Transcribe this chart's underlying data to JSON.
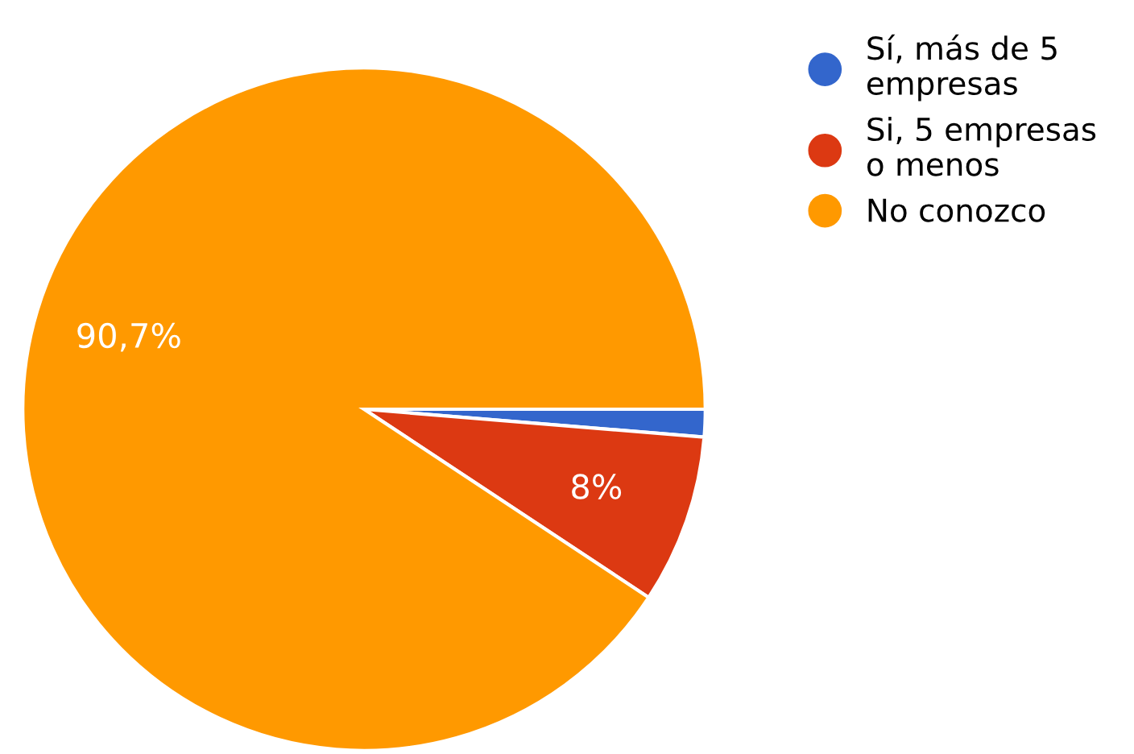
{
  "chart_data": {
    "type": "pie",
    "categories": [
      "Sí, más de 5 empresas",
      "Si, 5 empresas o menos",
      "No conozco"
    ],
    "values": [
      1.3,
      8,
      90.7
    ],
    "colors": [
      "#3366cc",
      "#dc3912",
      "#ff9900"
    ],
    "value_labels": [
      null,
      "8%",
      "90,7%"
    ],
    "legend": "top right"
  }
}
